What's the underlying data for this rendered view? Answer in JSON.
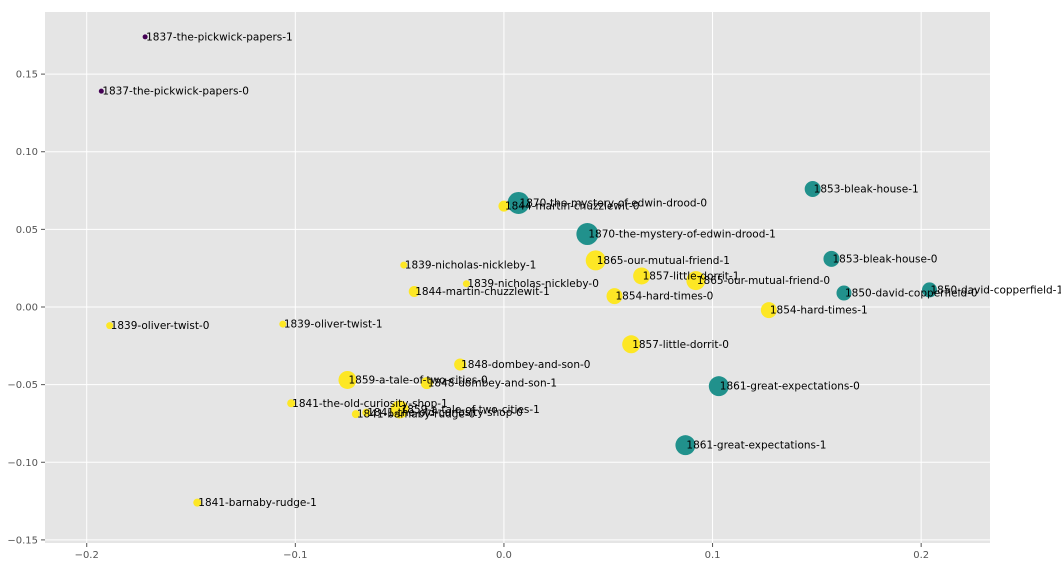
{
  "chart_data": {
    "type": "scatter",
    "title": "",
    "xlabel": "",
    "ylabel": "",
    "xlim": [
      -0.22,
      0.233
    ],
    "ylim": [
      -0.152,
      0.19
    ],
    "grid": true,
    "legend": "none",
    "xticks": [
      -0.2,
      -0.1,
      0.0,
      0.1,
      0.2
    ],
    "xtick_labels": [
      "−0.2",
      "−0.1",
      "0.0",
      "0.1",
      "0.2"
    ],
    "yticks": [
      -0.15,
      -0.1,
      -0.05,
      0.0,
      0.05,
      0.1,
      0.15
    ],
    "ytick_labels": [
      "−0.15",
      "−0.10",
      "−0.05",
      "0.00",
      "0.05",
      "0.10",
      "0.15"
    ],
    "colors": {
      "purple": "#440154",
      "teal": "#21918c",
      "yellow": "#fde725",
      "background": "#e5e5e5",
      "grid": "#ffffff"
    },
    "points": [
      {
        "label": "1837-the-pickwick-papers-1",
        "x": -0.172,
        "y": 0.174,
        "size": 2.5,
        "color": "purple"
      },
      {
        "label": "1837-the-pickwick-papers-0",
        "x": -0.193,
        "y": 0.139,
        "size": 2.5,
        "color": "purple"
      },
      {
        "label": "1870-the-mystery-of-edwin-drood-0",
        "x": 0.007,
        "y": 0.067,
        "size": 11,
        "color": "teal"
      },
      {
        "label": "1844-martin-chuzzlewit-0",
        "x": 0.0,
        "y": 0.065,
        "size": 5.5,
        "color": "yellow"
      },
      {
        "label": "1870-the-mystery-of-edwin-drood-1",
        "x": 0.04,
        "y": 0.047,
        "size": 11,
        "color": "teal"
      },
      {
        "label": "1853-bleak-house-1",
        "x": 0.148,
        "y": 0.076,
        "size": 8,
        "color": "teal"
      },
      {
        "label": "1853-bleak-house-0",
        "x": 0.157,
        "y": 0.031,
        "size": 8,
        "color": "teal"
      },
      {
        "label": "1839-nicholas-nickleby-1",
        "x": -0.048,
        "y": 0.027,
        "size": 3.5,
        "color": "yellow"
      },
      {
        "label": "1865-our-mutual-friend-1",
        "x": 0.044,
        "y": 0.03,
        "size": 10,
        "color": "yellow"
      },
      {
        "label": "1857-little-dorrit-1",
        "x": 0.066,
        "y": 0.02,
        "size": 8.5,
        "color": "yellow"
      },
      {
        "label": "1865-our-mutual-friend-0",
        "x": 0.092,
        "y": 0.017,
        "size": 9.5,
        "color": "yellow"
      },
      {
        "label": "1839-nicholas-nickleby-0",
        "x": -0.018,
        "y": 0.015,
        "size": 3.5,
        "color": "yellow"
      },
      {
        "label": "1844-martin-chuzzlewit-1",
        "x": -0.043,
        "y": 0.01,
        "size": 5.5,
        "color": "yellow"
      },
      {
        "label": "1854-hard-times-0",
        "x": 0.053,
        "y": 0.007,
        "size": 8,
        "color": "yellow"
      },
      {
        "label": "1850-david-copperfield-0",
        "x": 0.163,
        "y": 0.009,
        "size": 7.5,
        "color": "teal"
      },
      {
        "label": "1850-david-copperfield-1",
        "x": 0.204,
        "y": 0.011,
        "size": 7.5,
        "color": "teal"
      },
      {
        "label": "1854-hard-times-1",
        "x": 0.127,
        "y": -0.002,
        "size": 8,
        "color": "yellow"
      },
      {
        "label": "1839-oliver-twist-0",
        "x": -0.189,
        "y": -0.012,
        "size": 3.5,
        "color": "yellow"
      },
      {
        "label": "1839-oliver-twist-1",
        "x": -0.106,
        "y": -0.011,
        "size": 3.5,
        "color": "yellow"
      },
      {
        "label": "1857-little-dorrit-0",
        "x": 0.061,
        "y": -0.024,
        "size": 9,
        "color": "yellow"
      },
      {
        "label": "1848-dombey-and-son-0",
        "x": -0.021,
        "y": -0.037,
        "size": 6,
        "color": "yellow"
      },
      {
        "label": "1859-a-tale-of-two-cities-0",
        "x": -0.075,
        "y": -0.047,
        "size": 9,
        "color": "yellow"
      },
      {
        "label": "1848-dombey-and-son-1",
        "x": -0.037,
        "y": -0.049,
        "size": 6,
        "color": "yellow"
      },
      {
        "label": "1861-great-expectations-0",
        "x": 0.103,
        "y": -0.051,
        "size": 10,
        "color": "teal"
      },
      {
        "label": "1841-the-old-curiosity-shop-1",
        "x": -0.102,
        "y": -0.062,
        "size": 4,
        "color": "yellow"
      },
      {
        "label": "1859-a-tale-of-two-cities-1",
        "x": -0.05,
        "y": -0.066,
        "size": 9,
        "color": "yellow"
      },
      {
        "label": "1841-the-old-curiosity-shop-0",
        "x": -0.066,
        "y": -0.068,
        "size": 4,
        "color": "yellow"
      },
      {
        "label": "1841-barnaby-rudge-0",
        "x": -0.071,
        "y": -0.069,
        "size": 4,
        "color": "yellow"
      },
      {
        "label": "1861-great-expectations-1",
        "x": 0.087,
        "y": -0.089,
        "size": 10,
        "color": "teal"
      },
      {
        "label": "1841-barnaby-rudge-1",
        "x": -0.147,
        "y": -0.126,
        "size": 4,
        "color": "yellow"
      }
    ]
  }
}
